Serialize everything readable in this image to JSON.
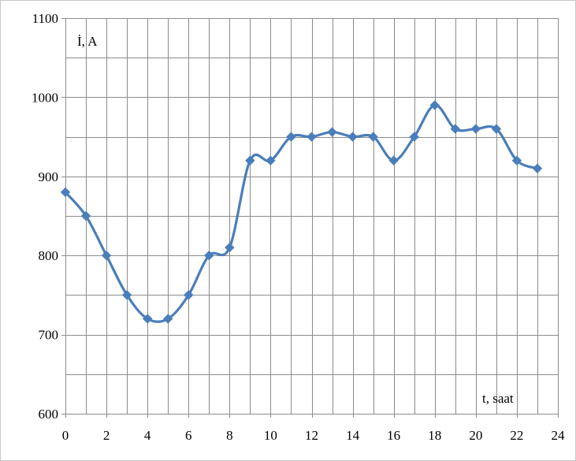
{
  "chart_data": {
    "type": "line",
    "title": "",
    "ylabel": "İ, A",
    "xlabel": "t, saat",
    "xlim": [
      0,
      24
    ],
    "ylim": [
      600,
      1100
    ],
    "x_ticks": [
      0,
      2,
      4,
      6,
      8,
      10,
      12,
      14,
      16,
      18,
      20,
      22,
      24
    ],
    "y_ticks": [
      600,
      700,
      800,
      900,
      1000,
      1100
    ],
    "x_minor_step": 1,
    "y_minor_step": 50,
    "grid": true,
    "legend": "none",
    "series": [
      {
        "marker": "diamond",
        "color": "#4a7ebb",
        "x": [
          0,
          1,
          2,
          3,
          4,
          5,
          6,
          7,
          8,
          9,
          10,
          11,
          12,
          13,
          14,
          15,
          16,
          17,
          18,
          19,
          20,
          21,
          22,
          23
        ],
        "y": [
          880,
          850,
          800,
          750,
          720,
          720,
          750,
          800,
          810,
          920,
          920,
          950,
          950,
          956,
          950,
          950,
          920,
          950,
          990,
          960,
          960,
          960,
          920,
          910
        ]
      }
    ]
  },
  "colors": {
    "line": "#4a7ebb",
    "grid": "#8c8c8c",
    "axis": "#8c8c8c",
    "frame": "#c8c8c8"
  }
}
